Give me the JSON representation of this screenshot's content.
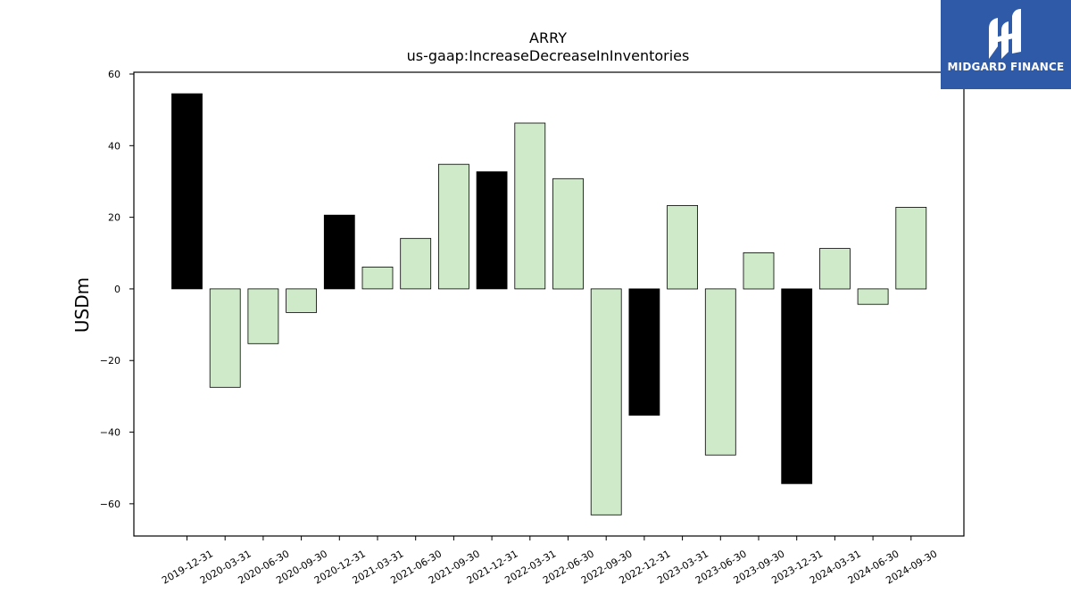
{
  "chart_data": {
    "type": "bar",
    "title": "ARRY",
    "subtitle": "us-gaap:IncreaseDecreaseInInventories",
    "xlabel": "",
    "ylabel": "USDm",
    "ylim": [
      -69,
      60.5
    ],
    "yticks": [
      60,
      40,
      20,
      0,
      -20,
      -40,
      -60
    ],
    "ytick_labels": [
      "60",
      "40",
      "20",
      "0",
      "−20",
      "−40",
      "−60"
    ],
    "grid": false,
    "categories": [
      "2019-12-31",
      "2020-03-31",
      "2020-06-30",
      "2020-09-30",
      "2020-12-31",
      "2021-03-31",
      "2021-06-30",
      "2021-09-30",
      "2021-12-31",
      "2022-03-31",
      "2022-06-30",
      "2022-09-30",
      "2022-12-31",
      "2023-03-31",
      "2023-06-30",
      "2023-09-30",
      "2023-12-31",
      "2024-03-31",
      "2024-06-30",
      "2024-09-30"
    ],
    "values": [
      54.5,
      -27.5,
      -15.3,
      -6.6,
      20.6,
      6.1,
      14.1,
      34.8,
      32.7,
      46.3,
      30.8,
      -63.1,
      -35.3,
      23.3,
      -46.4,
      10.1,
      -54.4,
      11.3,
      -4.3,
      22.8
    ],
    "bar_colors": [
      "#000000",
      "#cfeac8",
      "#cfeac8",
      "#cfeac8",
      "#000000",
      "#cfeac8",
      "#cfeac8",
      "#cfeac8",
      "#000000",
      "#cfeac8",
      "#cfeac8",
      "#cfeac8",
      "#000000",
      "#cfeac8",
      "#cfeac8",
      "#cfeac8",
      "#000000",
      "#cfeac8",
      "#cfeac8",
      "#cfeac8"
    ]
  },
  "logo": {
    "text": "MIDGARD FINANCE",
    "background": "#2f5aa8",
    "icon": "midgard-logo-icon"
  }
}
